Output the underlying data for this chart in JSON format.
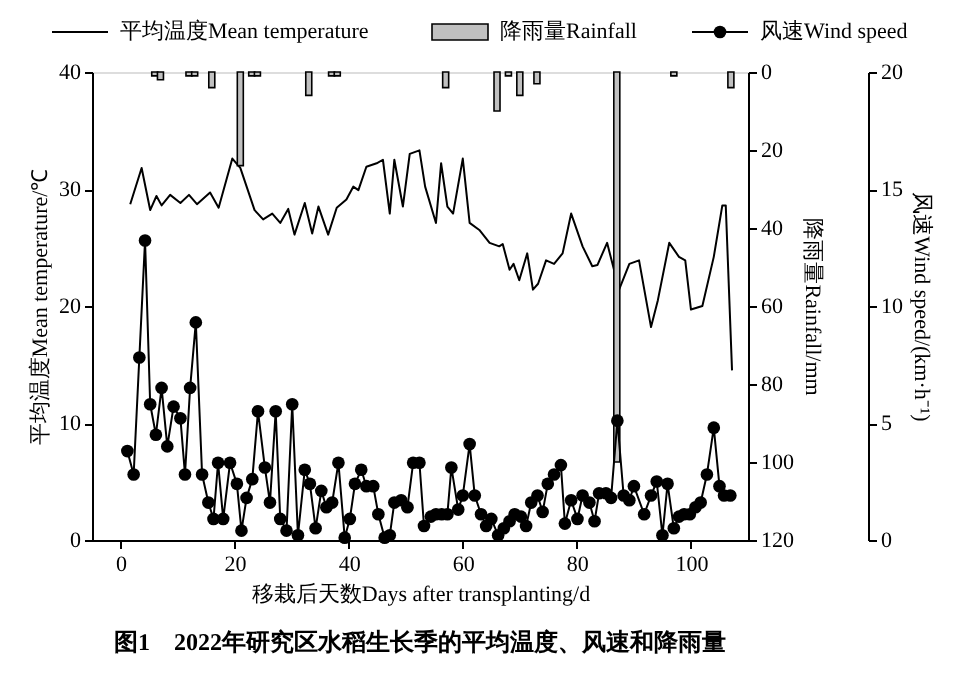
{
  "chart_data": {
    "type": "line",
    "title": "图1　2022年研究区水稻生长季的平均温度、风速和降雨量",
    "xlabel": "移栽后天数Days after transplanting/d",
    "ylabel": "平均温度Mean temperature/℃",
    "y2label": "降雨量Rainfall/mm",
    "y3label": "风速Wind speed/(km·h⁻¹)",
    "xlim": [
      -5,
      110
    ],
    "xticks": [
      0,
      20,
      40,
      60,
      80,
      100
    ],
    "ylim": [
      0,
      40
    ],
    "yticks": [
      0,
      10,
      20,
      30,
      40
    ],
    "y2lim": [
      120,
      0
    ],
    "y2ticks": [
      0,
      20,
      40,
      60,
      80,
      100,
      120
    ],
    "y3lim": [
      0,
      20
    ],
    "y3ticks": [
      0,
      5,
      10,
      15,
      20
    ],
    "grid": false,
    "legend": "top",
    "series": [
      {
        "name": "平均温度Mean temperature",
        "marker": "none",
        "color": "#000000",
        "x": [
          1.7,
          3.7,
          5.2,
          6.3,
          7.2,
          8.7,
          10.5,
          12,
          13.4,
          15.7,
          17.2,
          19.6,
          21,
          23.5,
          25,
          26.6,
          28,
          29.4,
          30.5,
          32.3,
          33.6,
          34.7,
          36.4,
          37.9,
          39.6,
          40.8,
          41.7,
          43.1,
          44.9,
          46,
          47.2,
          48,
          49.5,
          50.7,
          52.4,
          53.4,
          55.3,
          56.2,
          57.3,
          58.3,
          60,
          61.2,
          62.9,
          64.7,
          66.4,
          67,
          68.2,
          68.9,
          69.9,
          71.3,
          72.3,
          73.2,
          74.6,
          76,
          77.5,
          79,
          81,
          82.7,
          83.6,
          85.3,
          87.4,
          89.2,
          90.9,
          93,
          94.2,
          96.2,
          97.9,
          99,
          100,
          102,
          104,
          105.5,
          106.1,
          107.2
        ],
        "values": [
          28.7,
          31.8,
          28.2,
          29.4,
          28.6,
          29.5,
          28.8,
          29.5,
          28.7,
          29.7,
          28.4,
          32.6,
          31.8,
          28.2,
          27.4,
          27.9,
          27.1,
          28.3,
          26.1,
          28.8,
          26.2,
          28.5,
          26.1,
          28.4,
          29.1,
          30.2,
          29.9,
          31.9,
          32.2,
          32.5,
          27.9,
          32.5,
          28.5,
          33,
          33.3,
          30.2,
          27.1,
          32.2,
          28.5,
          27.9,
          32.6,
          27.1,
          26.5,
          25.4,
          25.1,
          25.3,
          23.1,
          23.6,
          22.2,
          24.5,
          21.4,
          21.9,
          23.9,
          23.6,
          24.5,
          27.9,
          25.1,
          23.4,
          23.5,
          25.4,
          21.4,
          23.6,
          23.9,
          18.2,
          20.5,
          25.4,
          24.2,
          23.9,
          19.7,
          20,
          24.2,
          28.6,
          28.6,
          14.5
        ]
      },
      {
        "name": "降雨量Rainfall",
        "type": "bar",
        "axis": "y2",
        "color": "#c0c0c0",
        "x": [
          6,
          7,
          12,
          13,
          16,
          21,
          23,
          24,
          33,
          37,
          38,
          57,
          66,
          68,
          70,
          73,
          87,
          97,
          107
        ],
        "values": [
          1,
          2,
          1,
          1,
          4,
          24,
          1,
          1,
          6,
          1,
          1,
          4,
          10,
          1,
          6,
          3,
          100,
          1,
          4
        ]
      },
      {
        "name": "风速Wind speed",
        "marker": "circle",
        "axis": "y3",
        "color": "#000000",
        "x": [
          1.2,
          2.3,
          3.3,
          4.3,
          5.2,
          6.2,
          7.2,
          8.2,
          9.3,
          10.5,
          11.3,
          12.2,
          13.2,
          14.3,
          15.4,
          16.3,
          17.1,
          18,
          19.2,
          20.4,
          21.2,
          22.1,
          23.1,
          24.1,
          25.3,
          26.2,
          27.2,
          28,
          29.1,
          30.1,
          31.1,
          32.3,
          33.2,
          34.2,
          35.2,
          36.1,
          37.1,
          38.2,
          39.3,
          40.2,
          41.1,
          42.2,
          43.1,
          44.3,
          45.2,
          46.3,
          47.2,
          48,
          49.2,
          50.3,
          51.3,
          52.4,
          53.2,
          54.4,
          55.3,
          56.3,
          57.3,
          58,
          59.2,
          60,
          61.2,
          62.1,
          63.2,
          64.1,
          65,
          66.2,
          67.2,
          68.2,
          69.1,
          70.2,
          71.1,
          72,
          73.1,
          74,
          74.9,
          76,
          77.2,
          77.9,
          79,
          80.1,
          81,
          82.2,
          83.1,
          83.9,
          85.1,
          86,
          87.1,
          88.2,
          89.2,
          90,
          91.8,
          93,
          94,
          95,
          95.9,
          97,
          97.9,
          98.8,
          99.8,
          100.8,
          101.7,
          102.8,
          104,
          105,
          105.8,
          106.9
        ],
        "values": [
          3.8,
          2.8,
          7.8,
          12.8,
          5.8,
          4.5,
          6.5,
          4.0,
          5.7,
          5.2,
          2.8,
          6.5,
          9.3,
          2.8,
          1.6,
          0.9,
          3.3,
          0.9,
          3.3,
          2.4,
          0.4,
          1.8,
          2.6,
          5.5,
          3.1,
          1.6,
          5.5,
          0.9,
          0.4,
          5.8,
          0.2,
          3.0,
          2.4,
          0.5,
          2.1,
          1.4,
          1.6,
          3.3,
          0.1,
          0.9,
          2.4,
          3.0,
          2.3,
          2.3,
          1.1,
          0.1,
          0.2,
          1.6,
          1.7,
          1.4,
          3.3,
          3.3,
          0.6,
          1.0,
          1.1,
          1.1,
          1.1,
          3.1,
          1.3,
          1.9,
          4.1,
          1.9,
          1.1,
          0.6,
          0.9,
          0.2,
          0.5,
          0.8,
          1.1,
          1.0,
          0.6,
          1.6,
          1.9,
          1.2,
          2.4,
          2.8,
          3.2,
          0.7,
          1.7,
          0.9,
          1.9,
          1.6,
          0.8,
          2.0,
          2.0,
          1.8,
          5.1,
          1.9,
          1.7,
          2.3,
          1.1,
          1.9,
          2.5,
          0.2,
          2.4,
          0.5,
          1.0,
          1.1,
          1.1,
          1.4,
          1.6,
          2.8,
          4.8,
          2.3,
          1.9,
          1.9
        ]
      }
    ]
  }
}
